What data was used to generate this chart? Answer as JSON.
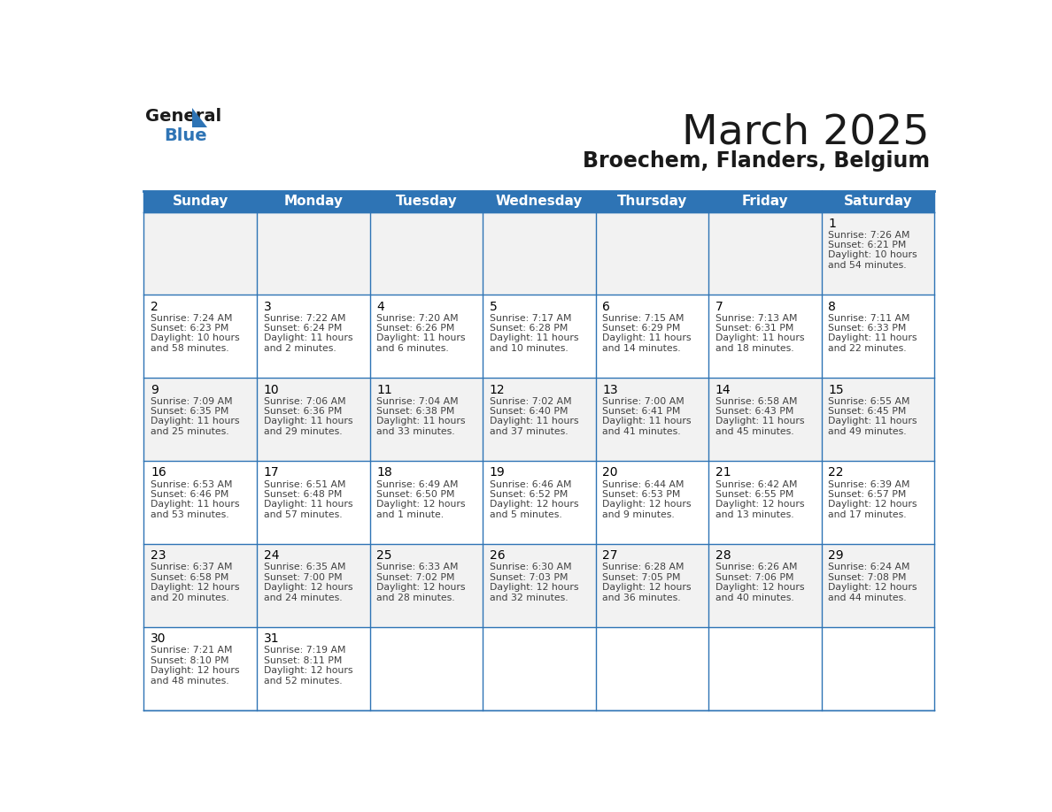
{
  "title": "March 2025",
  "subtitle": "Broechem, Flanders, Belgium",
  "days_of_week": [
    "Sunday",
    "Monday",
    "Tuesday",
    "Wednesday",
    "Thursday",
    "Friday",
    "Saturday"
  ],
  "header_bg": "#2E74B5",
  "header_text": "#FFFFFF",
  "row_bg": [
    "#F2F2F2",
    "#FFFFFF"
  ],
  "border_color": "#2E74B5",
  "day_num_color": "#000000",
  "cell_text_color": "#404040",
  "title_color": "#1a1a1a",
  "subtitle_color": "#1a1a1a",
  "logo_black": "#1a1a1a",
  "logo_blue": "#2E74B5",
  "calendar": [
    [
      null,
      null,
      null,
      null,
      null,
      null,
      {
        "day": 1,
        "sunrise": "7:26 AM",
        "sunset": "6:21 PM",
        "daylight": "10 hours",
        "daylight2": "and 54 minutes."
      }
    ],
    [
      {
        "day": 2,
        "sunrise": "7:24 AM",
        "sunset": "6:23 PM",
        "daylight": "10 hours",
        "daylight2": "and 58 minutes."
      },
      {
        "day": 3,
        "sunrise": "7:22 AM",
        "sunset": "6:24 PM",
        "daylight": "11 hours",
        "daylight2": "and 2 minutes."
      },
      {
        "day": 4,
        "sunrise": "7:20 AM",
        "sunset": "6:26 PM",
        "daylight": "11 hours",
        "daylight2": "and 6 minutes."
      },
      {
        "day": 5,
        "sunrise": "7:17 AM",
        "sunset": "6:28 PM",
        "daylight": "11 hours",
        "daylight2": "and 10 minutes."
      },
      {
        "day": 6,
        "sunrise": "7:15 AM",
        "sunset": "6:29 PM",
        "daylight": "11 hours",
        "daylight2": "and 14 minutes."
      },
      {
        "day": 7,
        "sunrise": "7:13 AM",
        "sunset": "6:31 PM",
        "daylight": "11 hours",
        "daylight2": "and 18 minutes."
      },
      {
        "day": 8,
        "sunrise": "7:11 AM",
        "sunset": "6:33 PM",
        "daylight": "11 hours",
        "daylight2": "and 22 minutes."
      }
    ],
    [
      {
        "day": 9,
        "sunrise": "7:09 AM",
        "sunset": "6:35 PM",
        "daylight": "11 hours",
        "daylight2": "and 25 minutes."
      },
      {
        "day": 10,
        "sunrise": "7:06 AM",
        "sunset": "6:36 PM",
        "daylight": "11 hours",
        "daylight2": "and 29 minutes."
      },
      {
        "day": 11,
        "sunrise": "7:04 AM",
        "sunset": "6:38 PM",
        "daylight": "11 hours",
        "daylight2": "and 33 minutes."
      },
      {
        "day": 12,
        "sunrise": "7:02 AM",
        "sunset": "6:40 PM",
        "daylight": "11 hours",
        "daylight2": "and 37 minutes."
      },
      {
        "day": 13,
        "sunrise": "7:00 AM",
        "sunset": "6:41 PM",
        "daylight": "11 hours",
        "daylight2": "and 41 minutes."
      },
      {
        "day": 14,
        "sunrise": "6:58 AM",
        "sunset": "6:43 PM",
        "daylight": "11 hours",
        "daylight2": "and 45 minutes."
      },
      {
        "day": 15,
        "sunrise": "6:55 AM",
        "sunset": "6:45 PM",
        "daylight": "11 hours",
        "daylight2": "and 49 minutes."
      }
    ],
    [
      {
        "day": 16,
        "sunrise": "6:53 AM",
        "sunset": "6:46 PM",
        "daylight": "11 hours",
        "daylight2": "and 53 minutes."
      },
      {
        "day": 17,
        "sunrise": "6:51 AM",
        "sunset": "6:48 PM",
        "daylight": "11 hours",
        "daylight2": "and 57 minutes."
      },
      {
        "day": 18,
        "sunrise": "6:49 AM",
        "sunset": "6:50 PM",
        "daylight": "12 hours",
        "daylight2": "and 1 minute."
      },
      {
        "day": 19,
        "sunrise": "6:46 AM",
        "sunset": "6:52 PM",
        "daylight": "12 hours",
        "daylight2": "and 5 minutes."
      },
      {
        "day": 20,
        "sunrise": "6:44 AM",
        "sunset": "6:53 PM",
        "daylight": "12 hours",
        "daylight2": "and 9 minutes."
      },
      {
        "day": 21,
        "sunrise": "6:42 AM",
        "sunset": "6:55 PM",
        "daylight": "12 hours",
        "daylight2": "and 13 minutes."
      },
      {
        "day": 22,
        "sunrise": "6:39 AM",
        "sunset": "6:57 PM",
        "daylight": "12 hours",
        "daylight2": "and 17 minutes."
      }
    ],
    [
      {
        "day": 23,
        "sunrise": "6:37 AM",
        "sunset": "6:58 PM",
        "daylight": "12 hours",
        "daylight2": "and 20 minutes."
      },
      {
        "day": 24,
        "sunrise": "6:35 AM",
        "sunset": "7:00 PM",
        "daylight": "12 hours",
        "daylight2": "and 24 minutes."
      },
      {
        "day": 25,
        "sunrise": "6:33 AM",
        "sunset": "7:02 PM",
        "daylight": "12 hours",
        "daylight2": "and 28 minutes."
      },
      {
        "day": 26,
        "sunrise": "6:30 AM",
        "sunset": "7:03 PM",
        "daylight": "12 hours",
        "daylight2": "and 32 minutes."
      },
      {
        "day": 27,
        "sunrise": "6:28 AM",
        "sunset": "7:05 PM",
        "daylight": "12 hours",
        "daylight2": "and 36 minutes."
      },
      {
        "day": 28,
        "sunrise": "6:26 AM",
        "sunset": "7:06 PM",
        "daylight": "12 hours",
        "daylight2": "and 40 minutes."
      },
      {
        "day": 29,
        "sunrise": "6:24 AM",
        "sunset": "7:08 PM",
        "daylight": "12 hours",
        "daylight2": "and 44 minutes."
      }
    ],
    [
      {
        "day": 30,
        "sunrise": "7:21 AM",
        "sunset": "8:10 PM",
        "daylight": "12 hours",
        "daylight2": "and 48 minutes."
      },
      {
        "day": 31,
        "sunrise": "7:19 AM",
        "sunset": "8:11 PM",
        "daylight": "12 hours",
        "daylight2": "and 52 minutes."
      },
      null,
      null,
      null,
      null,
      null
    ]
  ]
}
